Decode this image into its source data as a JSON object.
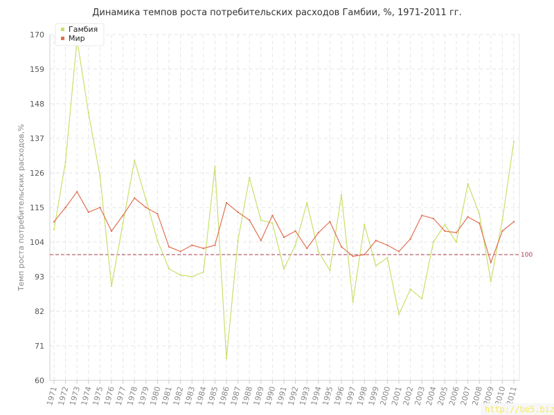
{
  "colors": {
    "gambia": "#c8e06a",
    "world": "#e07050",
    "reference": "#a8384a",
    "grid": "#e6e6e6",
    "axis": "#cccccc",
    "watermark_bg": "#f8f7f7",
    "watermark_text": "#f5ec55"
  },
  "watermark": "http://be5.biz/",
  "chart_data": {
    "type": "line",
    "title": "Динамика темпов роста потребительских расходов Гамбии, %, 1971-2011 гг.",
    "xlabel": "",
    "ylabel": "Темп роста потребительских расходов,%",
    "ylim": [
      60,
      170
    ],
    "yticks": [
      "60",
      "71",
      "82",
      "93",
      "104",
      "115",
      "126",
      "137",
      "148",
      "159",
      "170"
    ],
    "grid": true,
    "legend": "top-left",
    "x": [
      "1971",
      "1972",
      "1973",
      "1974",
      "1975",
      "1976",
      "1977",
      "1978",
      "1979",
      "1980",
      "1981",
      "1982",
      "1983",
      "1984",
      "1985",
      "1986",
      "1987",
      "1988",
      "1989",
      "1990",
      "1991",
      "1992",
      "1993",
      "1994",
      "1995",
      "1996",
      "1997",
      "1998",
      "1999",
      "2000",
      "2001",
      "2002",
      "2003",
      "2004",
      "2005",
      "2006",
      "2007",
      "2008",
      "2009",
      "2010",
      "2011"
    ],
    "series": [
      {
        "name": "Гамбия",
        "color_key": "gambia",
        "values": [
          108.0,
          129.5,
          168.5,
          145.0,
          125.0,
          90.0,
          110.0,
          130.0,
          117.5,
          104.5,
          95.5,
          93.5,
          93.0,
          94.5,
          128.0,
          67.0,
          104.5,
          124.5,
          111.0,
          110.0,
          95.5,
          103.0,
          116.5,
          101.0,
          95.0,
          119.0,
          85.0,
          109.5,
          96.5,
          99.0,
          81.0,
          89.0,
          86.0,
          104.0,
          109.5,
          104.0,
          122.5,
          113.0,
          91.5,
          111.0,
          136.0
        ]
      },
      {
        "name": "Мир",
        "color_key": "world",
        "values": [
          110.5,
          115.0,
          120.0,
          113.5,
          115.0,
          107.5,
          112.5,
          118.0,
          115.0,
          113.0,
          102.5,
          101.0,
          103.0,
          102.0,
          103.0,
          116.5,
          113.5,
          111.0,
          104.5,
          112.5,
          105.5,
          107.5,
          102.0,
          107.0,
          110.5,
          102.5,
          99.5,
          100.0,
          104.5,
          103.0,
          101.0,
          105.0,
          112.5,
          111.5,
          107.5,
          107.0,
          112.0,
          110.0,
          97.5,
          107.5,
          110.5
        ]
      }
    ],
    "reference_line": {
      "value": 100,
      "label": "100"
    }
  }
}
